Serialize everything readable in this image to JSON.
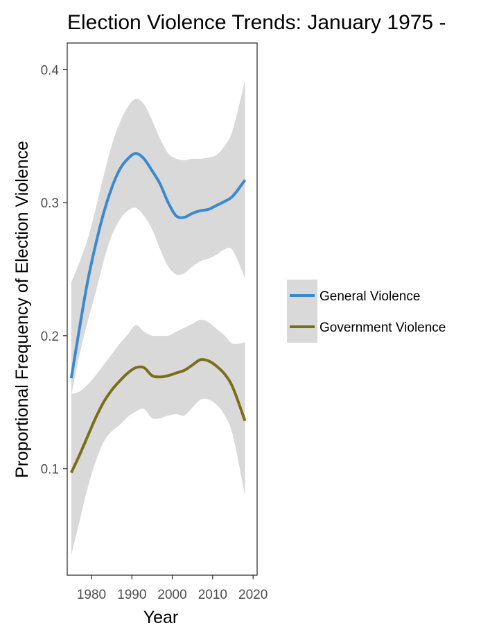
{
  "chart_data": {
    "type": "line",
    "title": "Election Violence Trends: January 1975 -",
    "xlabel": "Year",
    "ylabel": "Proportional Frequency of Election Violence",
    "xlim": [
      1974,
      2021
    ],
    "ylim": [
      0.02,
      0.42
    ],
    "x_ticks": [
      1980,
      1990,
      2000,
      2010,
      2020
    ],
    "x_tick_labels": [
      "1980",
      "1990",
      "2000",
      "2010",
      "2020"
    ],
    "y_ticks": [
      0.1,
      0.2,
      0.3,
      0.4
    ],
    "y_tick_labels": [
      "0.1",
      "0.2",
      "0.3",
      "0.4"
    ],
    "grid": false,
    "legend_position": "right",
    "band_color": "#d9d9d9",
    "series": [
      {
        "name": "General Violence",
        "color": "#3a88cf",
        "x": [
          1975,
          1977,
          1979,
          1981,
          1983,
          1985,
          1987,
          1989,
          1991,
          1993,
          1995,
          1997,
          1999,
          2001,
          2003,
          2005,
          2007,
          2009,
          2011,
          2013,
          2015,
          2018
        ],
        "y": [
          0.168,
          0.205,
          0.24,
          0.268,
          0.292,
          0.311,
          0.325,
          0.333,
          0.337,
          0.333,
          0.324,
          0.314,
          0.3,
          0.29,
          0.289,
          0.292,
          0.294,
          0.295,
          0.298,
          0.301,
          0.305,
          0.317
        ],
        "lower": [
          0.155,
          0.185,
          0.21,
          0.232,
          0.256,
          0.275,
          0.287,
          0.294,
          0.296,
          0.29,
          0.28,
          0.265,
          0.252,
          0.246,
          0.247,
          0.252,
          0.256,
          0.258,
          0.261,
          0.265,
          0.264,
          0.243
        ],
        "upper": [
          0.24,
          0.255,
          0.272,
          0.295,
          0.32,
          0.343,
          0.36,
          0.372,
          0.378,
          0.374,
          0.362,
          0.348,
          0.337,
          0.333,
          0.332,
          0.333,
          0.333,
          0.334,
          0.336,
          0.343,
          0.355,
          0.392
        ]
      },
      {
        "name": "Government Violence",
        "color": "#7a6e1a",
        "x": [
          1975,
          1977,
          1979,
          1981,
          1983,
          1985,
          1987,
          1989,
          1991,
          1993,
          1995,
          1997,
          1999,
          2001,
          2003,
          2005,
          2007,
          2009,
          2011,
          2013,
          2015,
          2018
        ],
        "y": [
          0.097,
          0.11,
          0.124,
          0.138,
          0.15,
          0.159,
          0.166,
          0.172,
          0.176,
          0.176,
          0.17,
          0.169,
          0.17,
          0.172,
          0.174,
          0.178,
          0.182,
          0.181,
          0.177,
          0.171,
          0.161,
          0.136
        ],
        "lower": [
          0.035,
          0.06,
          0.085,
          0.105,
          0.12,
          0.128,
          0.133,
          0.139,
          0.143,
          0.145,
          0.138,
          0.138,
          0.14,
          0.141,
          0.14,
          0.146,
          0.152,
          0.152,
          0.148,
          0.14,
          0.125,
          0.08
        ],
        "upper": [
          0.156,
          0.158,
          0.163,
          0.17,
          0.178,
          0.186,
          0.194,
          0.201,
          0.208,
          0.203,
          0.2,
          0.2,
          0.2,
          0.203,
          0.206,
          0.209,
          0.212,
          0.21,
          0.205,
          0.2,
          0.194,
          0.195
        ]
      }
    ]
  }
}
